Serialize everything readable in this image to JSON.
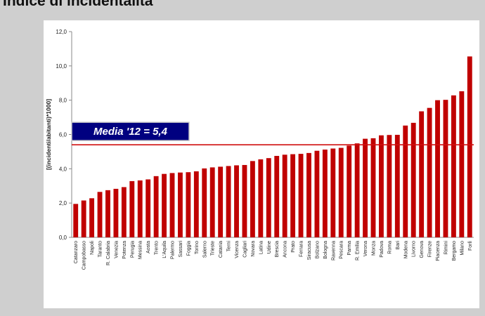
{
  "page": {
    "title": "Indice di incidentalità",
    "footer": ""
  },
  "colors": {
    "bar": "#c00000",
    "mean_line": "#d01010",
    "label_bg": "#000080",
    "label_text": "#ffffff",
    "axis": "#888888"
  },
  "chart_data": {
    "type": "bar",
    "title": "",
    "xlabel": "",
    "ylabel": "[(incidenti/abitanti)*1000]",
    "ylim": [
      0,
      12
    ],
    "yticks": [
      "0,0",
      "2,0",
      "4,0",
      "6,0",
      "8,0",
      "10,0",
      "12,0"
    ],
    "grid": false,
    "categories": [
      "Catanzaro",
      "Campobasso",
      "Napoli",
      "Taranto",
      "R. Calabria",
      "Venezia",
      "Potenza",
      "Perugia",
      "Messina",
      "Aosta",
      "Trento",
      "L'Aquila",
      "Palermo",
      "Sassari",
      "Foggia",
      "Torino",
      "Salerno",
      "Trieste",
      "Catania",
      "Terni",
      "Vicenza",
      "Cagliari",
      "Novara",
      "Latina",
      "Udine",
      "Brescia",
      "Ancona",
      "Prato",
      "Ferrara",
      "Siracusa",
      "Bolzano",
      "Bologna",
      "Ravenna",
      "Pescara",
      "Parma",
      "R. Emilia",
      "Verona",
      "Monza",
      "Padova",
      "Roma",
      "Bari",
      "Modena",
      "Livorno",
      "Genova",
      "Firenze",
      "Piacenza",
      "Rimini",
      "Bergamo",
      "Milano",
      "Forlì"
    ],
    "values": [
      1.95,
      2.15,
      2.28,
      2.65,
      2.75,
      2.83,
      2.93,
      3.28,
      3.32,
      3.38,
      3.57,
      3.7,
      3.75,
      3.78,
      3.8,
      3.85,
      4.02,
      4.08,
      4.12,
      4.16,
      4.2,
      4.22,
      4.45,
      4.55,
      4.62,
      4.75,
      4.82,
      4.85,
      4.87,
      4.92,
      5.05,
      5.12,
      5.18,
      5.22,
      5.35,
      5.48,
      5.75,
      5.78,
      5.95,
      5.97,
      5.98,
      6.52,
      6.68,
      7.35,
      7.55,
      8.0,
      8.02,
      8.28,
      8.52,
      10.55
    ],
    "mean": {
      "value": 5.4,
      "label": "Media '12 = 5,4"
    }
  }
}
